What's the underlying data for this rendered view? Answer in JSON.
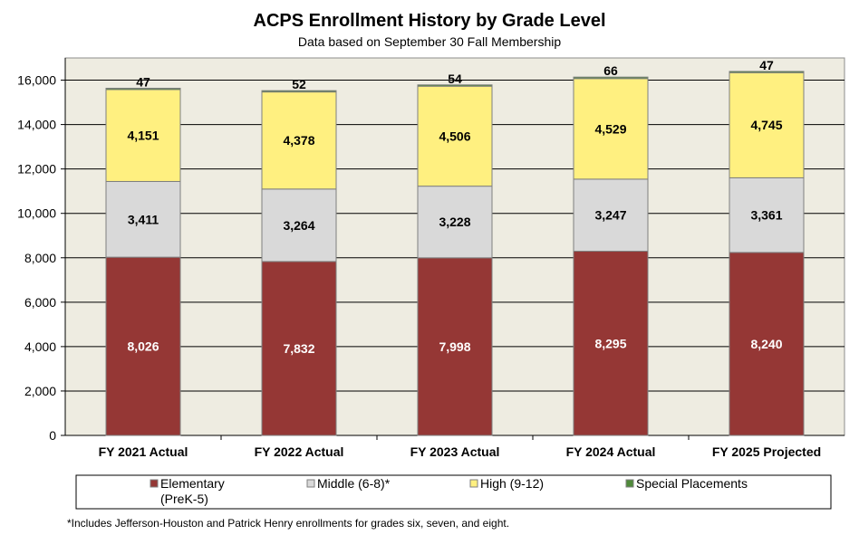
{
  "chart_data": {
    "type": "bar",
    "stacked": true,
    "title": "ACPS Enrollment History by Grade Level",
    "subtitle": "Data based on September 30 Fall Membership",
    "categories": [
      "FY 2021 Actual",
      "FY 2022 Actual",
      "FY 2023 Actual",
      "FY 2024 Actual",
      "FY 2025 Projected"
    ],
    "series": [
      {
        "name": "Elementary (PreK-5)",
        "legend_lines": [
          "Elementary",
          "(PreK-5)"
        ],
        "color": "#953735",
        "label_color": "#ffffff",
        "values": [
          8026,
          7832,
          7998,
          8295,
          8240
        ],
        "labels": [
          "8,026",
          "7,832",
          "7,998",
          "8,295",
          "8,240"
        ]
      },
      {
        "name": "Middle (6-8)*",
        "legend_lines": [
          "Middle (6-8)*"
        ],
        "color": "#d9d9d9",
        "label_color": "#000000",
        "values": [
          3411,
          3264,
          3228,
          3247,
          3361
        ],
        "labels": [
          "3,411",
          "3,264",
          "3,228",
          "3,247",
          "3,361"
        ]
      },
      {
        "name": "High (9-12)",
        "legend_lines": [
          "High (9-12)"
        ],
        "color": "#fff080",
        "label_color": "#000000",
        "values": [
          4151,
          4378,
          4506,
          4529,
          4745
        ],
        "labels": [
          "4,151",
          "4,378",
          "4,506",
          "4,529",
          "4,745"
        ]
      },
      {
        "name": "Special Placements",
        "legend_lines": [
          "Special Placements"
        ],
        "color": "#4f8a3a",
        "label_color": "#000000",
        "values": [
          47,
          52,
          54,
          66,
          47
        ],
        "labels": [
          "47",
          "52",
          "54",
          "66",
          "47"
        ]
      }
    ],
    "ylim": [
      0,
      17000
    ],
    "yticks": [
      0,
      2000,
      4000,
      6000,
      8000,
      10000,
      12000,
      14000,
      16000
    ],
    "ytick_labels": [
      "0",
      "2,000",
      "4,000",
      "6,000",
      "8,000",
      "10,000",
      "12,000",
      "14,000",
      "16,000"
    ],
    "plot_background": "#eeece1",
    "legend_position": "bottom",
    "footnote": "*Includes Jefferson-Houston and Patrick Henry enrollments for grades six, seven, and eight."
  }
}
